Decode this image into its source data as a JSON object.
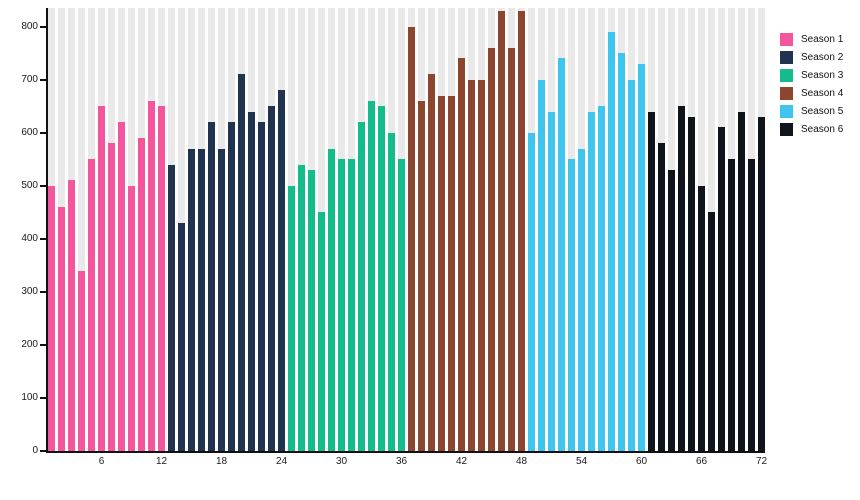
{
  "chart_data": {
    "type": "bar",
    "title": "",
    "xlabel": "",
    "ylabel": "",
    "x_unit": "episode-number",
    "categories_range": [
      1,
      72
    ],
    "xticks": [
      6,
      12,
      18,
      24,
      30,
      36,
      42,
      48,
      54,
      60,
      66,
      72
    ],
    "yticks": [
      0,
      100,
      200,
      300,
      400,
      500,
      600,
      700,
      800
    ],
    "ylim": [
      0,
      835
    ],
    "grid": false,
    "background_stripes": true,
    "legend_position": "top-right",
    "series": [
      {
        "name": "Season 1",
        "color": "#f4569d",
        "x_range": [
          1,
          12
        ],
        "values": [
          500,
          460,
          510,
          340,
          550,
          650,
          580,
          620,
          500,
          590,
          660,
          650
        ]
      },
      {
        "name": "Season 2",
        "color": "#20344f",
        "x_range": [
          13,
          24
        ],
        "values": [
          540,
          430,
          570,
          570,
          620,
          570,
          620,
          710,
          640,
          620,
          650,
          680
        ]
      },
      {
        "name": "Season 3",
        "color": "#14bc8c",
        "x_range": [
          25,
          36
        ],
        "values": [
          500,
          540,
          530,
          450,
          570,
          550,
          550,
          620,
          660,
          650,
          600,
          550
        ]
      },
      {
        "name": "Season 4",
        "color": "#8c452e",
        "x_range": [
          37,
          48
        ],
        "values": [
          800,
          660,
          710,
          670,
          670,
          740,
          700,
          700,
          760,
          830,
          760,
          830
        ]
      },
      {
        "name": "Season 5",
        "color": "#3fc5ee",
        "x_range": [
          49,
          60
        ],
        "values": [
          600,
          700,
          640,
          740,
          550,
          570,
          640,
          650,
          790,
          750,
          700,
          730
        ]
      },
      {
        "name": "Season 6",
        "color": "#10151b",
        "x_range": [
          61,
          72
        ],
        "values": [
          640,
          580,
          530,
          650,
          630,
          500,
          450,
          610,
          550,
          640,
          550,
          630
        ]
      }
    ],
    "colors": {
      "axis": "#111111",
      "tick_text": "#1a1a1a",
      "plot_stripe": "#e9e9e9",
      "background": "#ffffff"
    }
  }
}
